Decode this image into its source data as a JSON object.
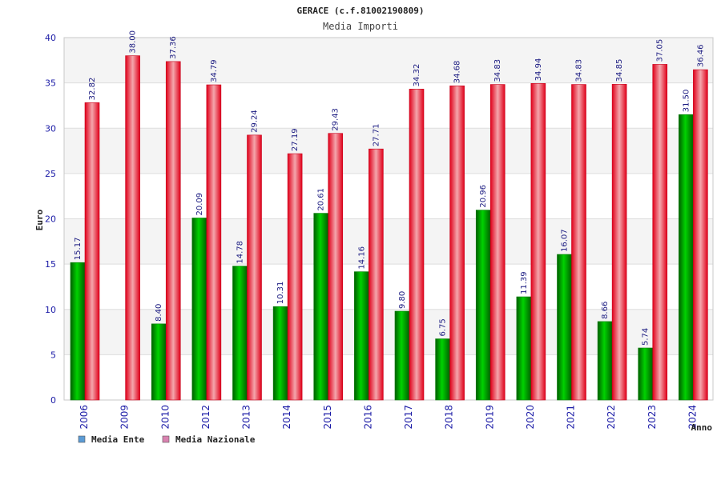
{
  "chart_data": {
    "type": "bar",
    "title": "GERACE (c.f.81002190809)",
    "subtitle": "Media Importi",
    "xlabel": "Anno",
    "ylabel": "Euro",
    "ylim": [
      0,
      40
    ],
    "yticks": [
      0,
      5,
      10,
      15,
      20,
      25,
      30,
      35,
      40
    ],
    "grid": true,
    "legend_position": "bottom-left",
    "categories": [
      "2006",
      "2009",
      "2010",
      "2012",
      "2013",
      "2014",
      "2015",
      "2016",
      "2017",
      "2018",
      "2019",
      "2020",
      "2021",
      "2022",
      "2023",
      "2024"
    ],
    "series": [
      {
        "name": "Media Ente",
        "color": "#00b000",
        "legend_color": "#5b9bd5",
        "values": [
          15.17,
          null,
          8.4,
          20.09,
          14.78,
          10.31,
          20.61,
          14.16,
          9.8,
          6.75,
          20.96,
          11.39,
          16.07,
          8.66,
          5.74,
          31.5
        ],
        "labels": [
          "15.17",
          "",
          "8.40",
          "20.09",
          "14.78",
          "10.31",
          "20.61",
          "14.16",
          "9.80",
          "6.75",
          "20.96",
          "11.39",
          "16.07",
          "8.66",
          "5.74",
          "31.50"
        ]
      },
      {
        "name": "Media Nazionale",
        "color": "#ee1c25",
        "legend_color": "#d982b0",
        "values": [
          32.82,
          38.0,
          37.36,
          34.79,
          29.24,
          27.19,
          29.43,
          27.71,
          34.32,
          34.68,
          34.83,
          34.94,
          34.83,
          34.85,
          37.05,
          36.46
        ],
        "labels": [
          "32.82",
          "38.00",
          "37.36",
          "34.79",
          "29.24",
          "27.19",
          "29.43",
          "27.71",
          "34.32",
          "34.68",
          "34.83",
          "34.94",
          "34.83",
          "34.85",
          "37.05",
          "36.46"
        ]
      }
    ]
  }
}
